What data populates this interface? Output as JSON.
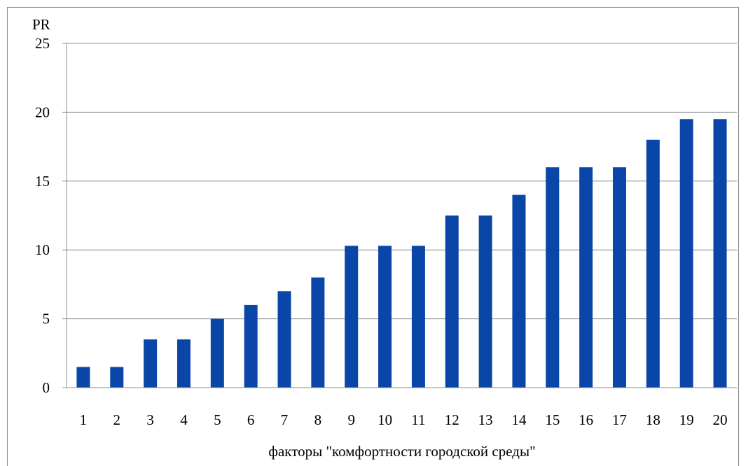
{
  "chart_data": {
    "type": "bar",
    "ylabel": "PR",
    "xlabel": "факторы \"комфортности городской среды\"",
    "ylim": [
      0,
      25
    ],
    "yticks": [
      0,
      5,
      10,
      15,
      20,
      25
    ],
    "grid": true,
    "categories": [
      "1",
      "2",
      "3",
      "4",
      "5",
      "6",
      "7",
      "8",
      "9",
      "10",
      "11",
      "12",
      "13",
      "14",
      "15",
      "16",
      "17",
      "18",
      "19",
      "20"
    ],
    "series": [
      {
        "values": [
          1.5,
          1.5,
          3.5,
          3.5,
          5,
          6,
          7,
          8,
          10.3,
          10.3,
          10.3,
          12.5,
          12.5,
          14,
          16,
          16,
          16,
          18,
          19.5,
          19.5
        ]
      }
    ],
    "colors": {
      "bar": "#0a45a8",
      "grid": "#8c8c8c",
      "axis": "#8c8c8c"
    }
  }
}
